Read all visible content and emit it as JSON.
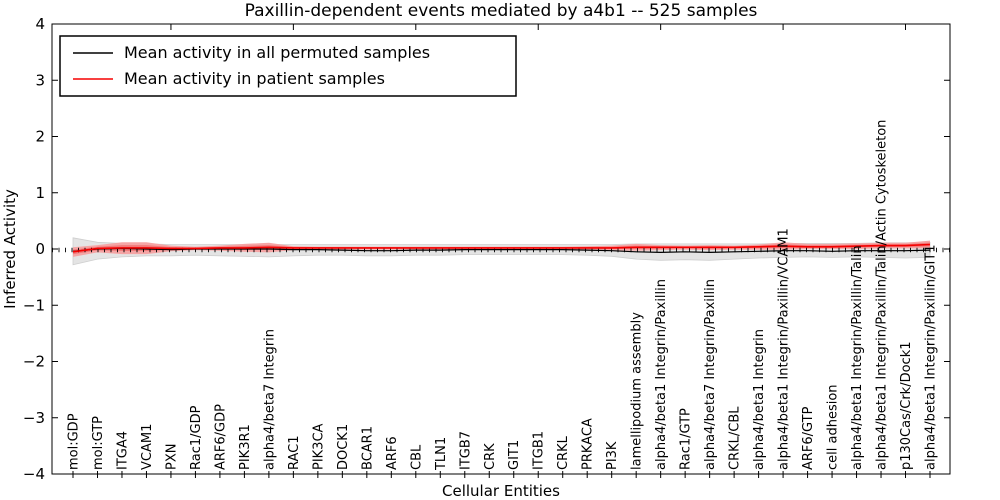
{
  "chart_data": {
    "type": "line",
    "title": "Paxillin-dependent events mediated by a4b1 -- 525 samples",
    "xlabel": "Cellular Entities",
    "ylabel": "Inferred Activity",
    "ylim": [
      -4,
      4
    ],
    "yticks": [
      -4,
      -3,
      -2,
      -1,
      0,
      1,
      2,
      3,
      4
    ],
    "grid": false,
    "legend_position": "upper left",
    "zero_line": {
      "value": 0,
      "style": "dashed",
      "color": "#000000"
    },
    "band_colors": {
      "permuted_outer": "#e4e4e4",
      "permuted_edge": "#cfcfcf",
      "patient_outer": "#f5a5a5",
      "patient_inner": "#ee7272"
    },
    "categories": [
      "mol:GDP",
      "mol:GTP",
      "ITGA4",
      "VCAM1",
      "PXN",
      "Rac1/GDP",
      "ARF6/GDP",
      "PIK3R1",
      "alpha4/beta7 Integrin",
      "RAC1",
      "PIK3CA",
      "DOCK1",
      "BCAR1",
      "ARF6",
      "CBL",
      "TLN1",
      "ITGB7",
      "CRK",
      "GIT1",
      "ITGB1",
      "CRKL",
      "PRKACA",
      "PI3K",
      "lamellipodium assembly",
      "alpha4/beta1 Integrin/Paxillin",
      "Rac1/GTP",
      "alpha4/beta7 Integrin/Paxillin",
      "CRKL/CBL",
      "alpha4/beta1 Integrin",
      "alpha4/beta1 Integrin/Paxillin/VCAM1",
      "ARF6/GTP",
      "cell adhesion",
      "alpha4/beta1 Integrin/Paxillin/Talin",
      "alpha4/beta1 Integrin/Paxillin/Talin/Actin Cytoskeleton",
      "p130Cas/Crk/Dock1",
      "alpha4/beta1 Integrin/Paxillin/GIT1"
    ],
    "series": [
      {
        "name": "Mean activity in all permuted samples",
        "color": "#000000",
        "values": [
          -0.04,
          0.0,
          0.01,
          0.0,
          -0.01,
          0.0,
          0.0,
          0.0,
          0.0,
          -0.01,
          -0.01,
          -0.02,
          -0.03,
          -0.03,
          -0.02,
          -0.02,
          -0.01,
          -0.01,
          -0.01,
          -0.01,
          -0.01,
          -0.02,
          -0.03,
          -0.05,
          -0.06,
          -0.05,
          -0.06,
          -0.05,
          -0.04,
          -0.03,
          -0.03,
          -0.04,
          -0.03,
          -0.03,
          -0.03,
          -0.02
        ],
        "band_upper": [
          0.2,
          0.12,
          0.1,
          0.09,
          0.08,
          0.08,
          0.08,
          0.08,
          0.08,
          0.08,
          0.08,
          0.08,
          0.08,
          0.08,
          0.08,
          0.08,
          0.08,
          0.08,
          0.08,
          0.08,
          0.08,
          0.08,
          0.08,
          0.09,
          0.09,
          0.09,
          0.09,
          0.09,
          0.09,
          0.1,
          0.1,
          0.1,
          0.1,
          0.11,
          0.11,
          0.12
        ],
        "band_lower": [
          -0.28,
          -0.18,
          -0.14,
          -0.12,
          -0.12,
          -0.11,
          -0.12,
          -0.13,
          -0.14,
          -0.12,
          -0.11,
          -0.11,
          -0.12,
          -0.12,
          -0.11,
          -0.11,
          -0.1,
          -0.1,
          -0.1,
          -0.1,
          -0.1,
          -0.11,
          -0.13,
          -0.18,
          -0.2,
          -0.19,
          -0.2,
          -0.18,
          -0.16,
          -0.15,
          -0.14,
          -0.15,
          -0.14,
          -0.15,
          -0.16,
          -0.15
        ]
      },
      {
        "name": "Mean activity in patient samples",
        "color": "#f50000",
        "values": [
          -0.05,
          0.01,
          0.02,
          0.02,
          0.01,
          0.01,
          0.02,
          0.02,
          0.03,
          0.02,
          0.02,
          0.02,
          0.02,
          0.02,
          0.02,
          0.02,
          0.02,
          0.02,
          0.02,
          0.02,
          0.02,
          0.02,
          0.02,
          0.03,
          0.03,
          0.03,
          0.03,
          0.03,
          0.04,
          0.05,
          0.04,
          0.04,
          0.05,
          0.06,
          0.06,
          0.08
        ],
        "band_upper": [
          0.03,
          0.07,
          0.12,
          0.12,
          0.06,
          0.04,
          0.06,
          0.09,
          0.11,
          0.05,
          0.04,
          0.04,
          0.04,
          0.04,
          0.04,
          0.04,
          0.04,
          0.04,
          0.04,
          0.04,
          0.04,
          0.05,
          0.06,
          0.09,
          0.07,
          0.06,
          0.07,
          0.06,
          0.08,
          0.12,
          0.09,
          0.09,
          0.1,
          0.11,
          0.11,
          0.15
        ],
        "band_lower": [
          -0.14,
          -0.06,
          -0.09,
          -0.09,
          -0.04,
          -0.02,
          -0.03,
          -0.05,
          -0.06,
          -0.02,
          -0.01,
          -0.01,
          -0.01,
          -0.01,
          -0.01,
          -0.01,
          -0.01,
          -0.01,
          -0.01,
          -0.01,
          -0.01,
          -0.01,
          -0.02,
          -0.03,
          -0.02,
          -0.01,
          -0.02,
          -0.01,
          -0.01,
          -0.01,
          0.0,
          0.0,
          0.0,
          0.01,
          0.01,
          0.01
        ]
      }
    ]
  }
}
